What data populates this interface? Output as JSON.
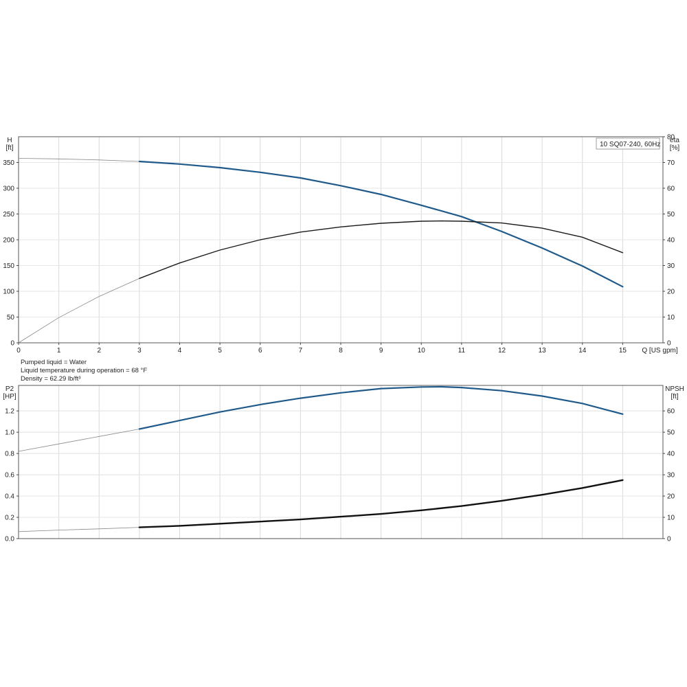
{
  "legend": "10 SQ07-240, 60Hz",
  "notes": {
    "liquid": "Pumped liquid = Water",
    "temperature": "Liquid temperature during operation = 68 °F",
    "density": "Density = 62.29 lb/ft³"
  },
  "chart_data": [
    {
      "type": "line",
      "name": "top-chart",
      "xlabel": "Q [US gpm]",
      "xlim": [
        0,
        16
      ],
      "xticks": [
        0,
        1,
        2,
        3,
        4,
        5,
        6,
        7,
        8,
        9,
        10,
        11,
        12,
        13,
        14,
        15
      ],
      "y_left": {
        "label_line1": "H",
        "label_line2": "[ft]",
        "ylim": [
          0,
          400
        ],
        "ticks": [
          0,
          50,
          100,
          150,
          200,
          250,
          300,
          350
        ]
      },
      "y_right": {
        "label_line1": "eta",
        "label_line2": "[%]",
        "ylim": [
          0,
          80
        ],
        "ticks": [
          0,
          10,
          20,
          30,
          40,
          50,
          60,
          70,
          80
        ]
      },
      "grid": true,
      "legend_position": "top-right",
      "series": [
        {
          "axis": "left",
          "color": "#1f5a8a",
          "thin_until": 3,
          "points": [
            [
              0,
              358
            ],
            [
              1,
              357
            ],
            [
              2,
              355
            ],
            [
              3,
              352
            ],
            [
              4,
              347
            ],
            [
              5,
              340
            ],
            [
              6,
              331
            ],
            [
              7,
              320
            ],
            [
              8,
              305
            ],
            [
              9,
              288
            ],
            [
              10,
              267
            ],
            [
              11,
              245
            ],
            [
              12,
              216
            ],
            [
              13,
              184
            ],
            [
              14,
              149
            ],
            [
              15,
              109
            ]
          ]
        },
        {
          "axis": "right",
          "color": "#1a1a1a",
          "thin_until": 3,
          "points": [
            [
              0,
              0
            ],
            [
              1,
              9.8
            ],
            [
              2,
              18
            ],
            [
              3,
              25
            ],
            [
              4,
              31
            ],
            [
              5,
              36
            ],
            [
              6,
              40
            ],
            [
              7,
              43
            ],
            [
              8,
              45
            ],
            [
              9,
              46.4
            ],
            [
              10,
              47.2
            ],
            [
              10.5,
              47.3
            ],
            [
              11,
              47.2
            ],
            [
              12,
              46.5
            ],
            [
              13,
              44.5
            ],
            [
              14,
              41
            ],
            [
              15,
              35
            ]
          ]
        }
      ]
    },
    {
      "type": "line",
      "name": "bottom-chart",
      "xlim": [
        0,
        16
      ],
      "xticks": [
        0,
        1,
        2,
        3,
        4,
        5,
        6,
        7,
        8,
        9,
        10,
        11,
        12,
        13,
        14,
        15
      ],
      "y_left": {
        "label_line1": "P2",
        "label_line2": "[HP]",
        "ylim": [
          0,
          1.44
        ],
        "ticks": [
          0.0,
          0.2,
          0.4,
          0.6,
          0.8,
          1.0,
          1.2
        ],
        "tick_labels": [
          "0.0",
          "0.2",
          "0.4",
          "0.6",
          "0.8",
          "1.0",
          "1.2"
        ]
      },
      "y_right": {
        "label_line1": "NPSH",
        "label_line2": "[ft]",
        "ylim": [
          0,
          72
        ],
        "ticks": [
          0,
          10,
          20,
          30,
          40,
          50,
          60
        ]
      },
      "grid": true,
      "series": [
        {
          "axis": "left",
          "color": "#1f5a8a",
          "thin_until": 3,
          "points": [
            [
              0,
              0.82
            ],
            [
              1,
              0.89
            ],
            [
              2,
              0.96
            ],
            [
              3,
              1.03
            ],
            [
              4,
              1.11
            ],
            [
              5,
              1.19
            ],
            [
              6,
              1.26
            ],
            [
              7,
              1.32
            ],
            [
              8,
              1.37
            ],
            [
              9,
              1.41
            ],
            [
              10,
              1.425
            ],
            [
              10.5,
              1.427
            ],
            [
              11,
              1.42
            ],
            [
              12,
              1.39
            ],
            [
              13,
              1.34
            ],
            [
              14,
              1.27
            ],
            [
              15,
              1.17
            ]
          ]
        },
        {
          "axis": "right",
          "color": "#111111",
          "thin_until": 3,
          "points": [
            [
              0,
              3.3
            ],
            [
              1,
              4
            ],
            [
              2,
              4.6
            ],
            [
              3,
              5.3
            ],
            [
              4,
              6
            ],
            [
              5,
              7
            ],
            [
              6,
              8
            ],
            [
              7,
              9
            ],
            [
              8,
              10.3
            ],
            [
              9,
              11.6
            ],
            [
              10,
              13.3
            ],
            [
              11,
              15.3
            ],
            [
              12,
              17.8
            ],
            [
              13,
              20.6
            ],
            [
              14,
              23.8
            ],
            [
              15,
              27.5
            ]
          ]
        }
      ]
    }
  ]
}
